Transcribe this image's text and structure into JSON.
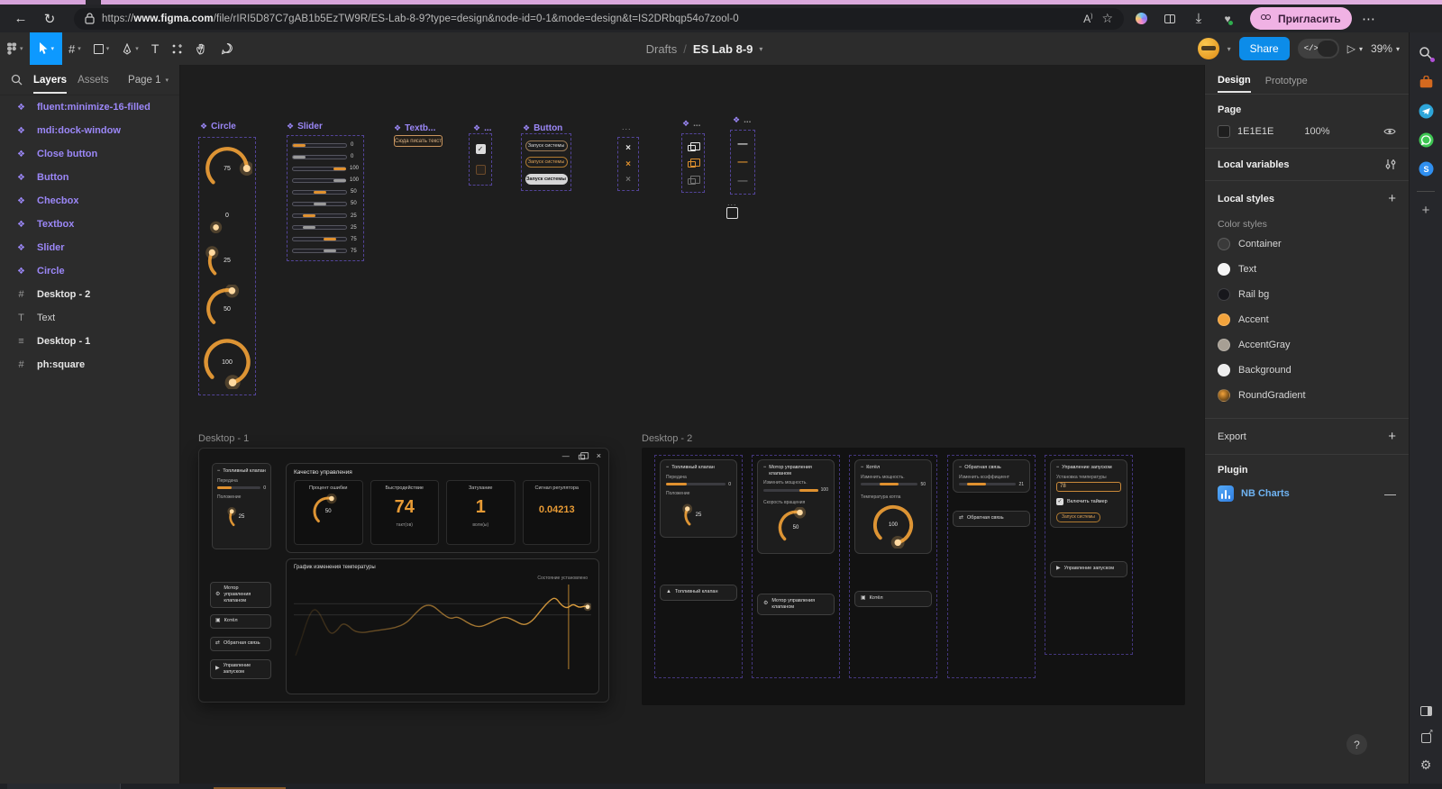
{
  "browser": {
    "url_scheme": "https://",
    "url_domain": "www.figma.com",
    "url_path": "/file/rIRI5D87C7gAB1b5EzTW9R/ES-Lab-8-9?type=design&node-id=0-1&mode=design&t=IS2DRbqp54o7zool-0",
    "invite_label": "Пригласить"
  },
  "toolbar": {
    "drafts": "Drafts",
    "separator": "/",
    "file_name": "ES Lab 8-9",
    "share_label": "Share",
    "zoom_level": "39%"
  },
  "layers": {
    "tab_layers": "Layers",
    "tab_assets": "Assets",
    "page_selector": "Page 1",
    "items": [
      {
        "label": "fluent:minimize-16-filled",
        "kind": "component"
      },
      {
        "label": "mdi:dock-window",
        "kind": "component"
      },
      {
        "label": "Close button",
        "kind": "component"
      },
      {
        "label": "Button",
        "kind": "component"
      },
      {
        "label": "Checbox",
        "kind": "component"
      },
      {
        "label": "Textbox",
        "kind": "component"
      },
      {
        "label": "Slider",
        "kind": "component"
      },
      {
        "label": "Circle",
        "kind": "component"
      },
      {
        "label": "Desktop - 2",
        "kind": "frame"
      },
      {
        "label": "Text",
        "kind": "text"
      },
      {
        "label": "Desktop - 1",
        "kind": "frame"
      },
      {
        "label": "ph:square",
        "kind": "frame"
      }
    ]
  },
  "canvas": {
    "circle": {
      "label": "Circle",
      "gauges": [
        75,
        0,
        25,
        50,
        100
      ]
    },
    "slider": {
      "label": "Slider",
      "rows": [
        {
          "value": 0,
          "color": "accent"
        },
        {
          "value": 0,
          "color": "gray"
        },
        {
          "value": 100,
          "color": "accent"
        },
        {
          "value": 100,
          "color": "gray"
        },
        {
          "value": 50,
          "color": "accent"
        },
        {
          "value": 50,
          "color": "gray"
        },
        {
          "value": 25,
          "color": "accent"
        },
        {
          "value": 25,
          "color": "gray"
        },
        {
          "value": 75,
          "color": "accent"
        },
        {
          "value": 75,
          "color": "gray"
        }
      ]
    },
    "textbox": {
      "label": "Textb...",
      "text": "Сюда писать текст"
    },
    "checkbox": {
      "label": "..."
    },
    "button": {
      "label": "Button",
      "buttons": [
        {
          "text": "Запуск системы"
        },
        {
          "text": "Запуск системы"
        },
        {
          "text": "Запуск системы"
        }
      ]
    },
    "close": {
      "label": "..."
    },
    "dock": {
      "label": "..."
    },
    "minimize": {
      "label": "..."
    },
    "square": {
      "label": "..."
    }
  },
  "desktop1": {
    "title": "Desktop - 1",
    "valve_card": {
      "title": "Топливный клапан",
      "slider_label": "Передача",
      "slider_value": 0,
      "gauge_label": "Положение",
      "gauge_value": 25
    },
    "nav_buttons": [
      {
        "label": "Мотор управления клапаном"
      },
      {
        "label": "Котёл"
      },
      {
        "label": "Обратная связь"
      },
      {
        "label": "Управление запуском"
      }
    ],
    "quality": {
      "title": "Качество управления",
      "cards": [
        {
          "title": "Процент ошибки",
          "gauge_value": 50
        },
        {
          "title": "Быстродействие",
          "value": "74",
          "unit": "такт(ов)"
        },
        {
          "title": "Затухание",
          "value": "1",
          "unit": "волн(ы)"
        },
        {
          "title": "Сигнал регулятора",
          "value": "0.04213",
          "unit": ""
        }
      ]
    },
    "chart": {
      "title": "График изменения температуры",
      "legend": "Состояние установлено",
      "type": "line",
      "marker_x": 93.5,
      "points": [
        [
          0,
          92
        ],
        [
          2,
          72
        ],
        [
          4,
          48
        ],
        [
          6,
          34
        ],
        [
          8,
          38
        ],
        [
          10,
          54
        ],
        [
          12,
          66
        ],
        [
          14,
          62
        ],
        [
          16,
          52
        ],
        [
          18,
          55
        ],
        [
          20,
          62
        ],
        [
          23,
          64
        ],
        [
          26,
          62
        ],
        [
          30,
          60
        ],
        [
          34,
          58
        ],
        [
          38,
          52
        ],
        [
          41,
          40
        ],
        [
          44,
          30
        ],
        [
          47,
          30
        ],
        [
          50,
          40
        ],
        [
          53,
          47
        ],
        [
          55,
          44
        ],
        [
          57,
          47
        ],
        [
          60,
          54
        ],
        [
          63,
          57
        ],
        [
          66,
          53
        ],
        [
          69,
          47
        ],
        [
          72,
          44
        ],
        [
          75,
          49
        ],
        [
          78,
          55
        ],
        [
          81,
          50
        ],
        [
          84,
          36
        ],
        [
          87,
          24
        ],
        [
          89,
          20
        ],
        [
          91,
          30
        ],
        [
          93,
          34
        ],
        [
          95,
          28
        ],
        [
          97,
          33
        ],
        [
          99,
          31
        ],
        [
          100,
          32
        ]
      ]
    }
  },
  "desktop2": {
    "title": "Desktop - 2",
    "columns": [
      {
        "title": "Топливный клапан",
        "slider_label": "Передача",
        "slider_value": 0,
        "gauge_label": "Положение",
        "gauge_value": 25,
        "button": "Топливный клапан"
      },
      {
        "title": "Мотор управления клапаном",
        "slider_label": "Изменить мощность.",
        "slider_value": 100,
        "gauge_label": "Скорость вращения",
        "gauge_value": 50,
        "button": "Мотор управления клапаном"
      },
      {
        "title": "Котёл",
        "slider_label": "Изменить мощность.",
        "slider_value": 50,
        "gauge_label": "Температура котла",
        "gauge_value": 100,
        "button": "Котёл"
      },
      {
        "title": "Обратная связь",
        "slider_label": "Изменить коэффициент",
        "slider_value": 21,
        "button": "Обратная связь"
      },
      {
        "title": "Управление запуском",
        "input_label": "Установка температуры",
        "input_value": "78",
        "checkbox_label": "Включить таймер",
        "checkbox_checked": true,
        "action_button": "Запуск системы",
        "button": "Управление запуском"
      }
    ]
  },
  "design_panel": {
    "tab_design": "Design",
    "tab_prototype": "Prototype",
    "page_title": "Page",
    "page_color_hex": "1E1E1E",
    "page_opacity": "100%",
    "local_variables": "Local variables",
    "local_styles": "Local styles",
    "color_styles_title": "Color styles",
    "color_styles": [
      {
        "name": "Container",
        "color": "#3a3a3a"
      },
      {
        "name": "Text",
        "color": "#f5f5f5"
      },
      {
        "name": "Rail bg",
        "color": "#17171c"
      },
      {
        "name": "Accent",
        "color": "#f2a33c"
      },
      {
        "name": "AccentGray",
        "color": "#a79f94"
      },
      {
        "name": "Background",
        "color": "#ededed"
      },
      {
        "name": "RoundGradient",
        "color": "gradient"
      }
    ],
    "export_title": "Export",
    "plugin_title": "Plugin",
    "plugin_name": "NB Charts"
  },
  "misc": {
    "help": "?"
  }
}
